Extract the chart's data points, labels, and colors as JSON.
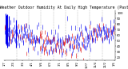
{
  "title": "Milwaukee Weather Outdoor Humidity At Daily High Temperature (Past Year)",
  "ylim": [
    15,
    105
  ],
  "yticks": [
    20,
    30,
    40,
    50,
    60,
    70,
    80,
    90,
    100
  ],
  "n_points": 365,
  "seed": 42,
  "background_color": "#ffffff",
  "blue_color": "#0000ee",
  "red_color": "#dd0000",
  "grid_color": "#999999",
  "title_fontsize": 3.5,
  "tick_fontsize": 2.8,
  "num_dashed_lines": 8,
  "spike_indices": [
    4,
    6,
    10,
    14,
    38
  ],
  "spike_bottoms": [
    45,
    42,
    38,
    40,
    38
  ],
  "spike_tops": [
    100,
    97,
    98,
    95,
    88
  ]
}
